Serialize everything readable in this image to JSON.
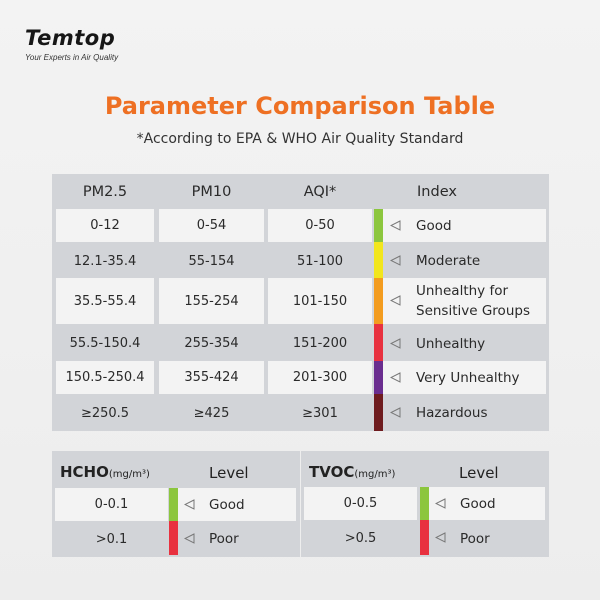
{
  "brand": {
    "name": "Temtop",
    "tagline": "Your Experts in Air Quality"
  },
  "title": "Parameter Comparison Table",
  "subtitle": "*According to EPA & WHO Air Quality Standard",
  "main_table": {
    "headers": {
      "pm25": "PM2.5",
      "pm10": "PM10",
      "aqi": "AQI*",
      "index": "Index"
    },
    "rows": [
      {
        "pm25": "0-12",
        "pm10": "0-54",
        "aqi": "0-50",
        "level_line1": "Good",
        "level_line2": "",
        "color": "#8cc63e"
      },
      {
        "pm25": "12.1-35.4",
        "pm10": "55-154",
        "aqi": "51-100",
        "level_line1": "Moderate",
        "level_line2": "",
        "color": "#f2e61d"
      },
      {
        "pm25": "35.5-55.4",
        "pm10": "155-254",
        "aqi": "101-150",
        "level_line1": "Unhealthy for",
        "level_line2": "Sensitive Groups",
        "color": "#f39c1f"
      },
      {
        "pm25": "55.5-150.4",
        "pm10": "255-354",
        "aqi": "151-200",
        "level_line1": "Unhealthy",
        "level_line2": "",
        "color": "#e8313f"
      },
      {
        "pm25": "150.5-250.4",
        "pm10": "355-424",
        "aqi": "201-300",
        "level_line1": "Very Unhealthy",
        "level_line2": "",
        "color": "#6a2d8f"
      },
      {
        "pm25": "≥250.5",
        "pm10": "≥425",
        "aqi": "≥301",
        "level_line1": "Hazardous",
        "level_line2": "",
        "color": "#6e1b1e"
      }
    ]
  },
  "hcho_table": {
    "name": "HCHO",
    "unit": "(mg/m³)",
    "level_header": "Level",
    "rows": [
      {
        "range": "0-0.1",
        "level": "Good",
        "color": "#8cc63e"
      },
      {
        "range": ">0.1",
        "level": "Poor",
        "color": "#e8313f"
      }
    ]
  },
  "tvoc_table": {
    "name": "TVOC",
    "unit": "(mg/m³)",
    "level_header": "Level",
    "rows": [
      {
        "range": "0-0.5",
        "level": "Good",
        "color": "#8cc63e"
      },
      {
        "range": ">0.5",
        "level": "Poor",
        "color": "#e8313f"
      }
    ]
  }
}
